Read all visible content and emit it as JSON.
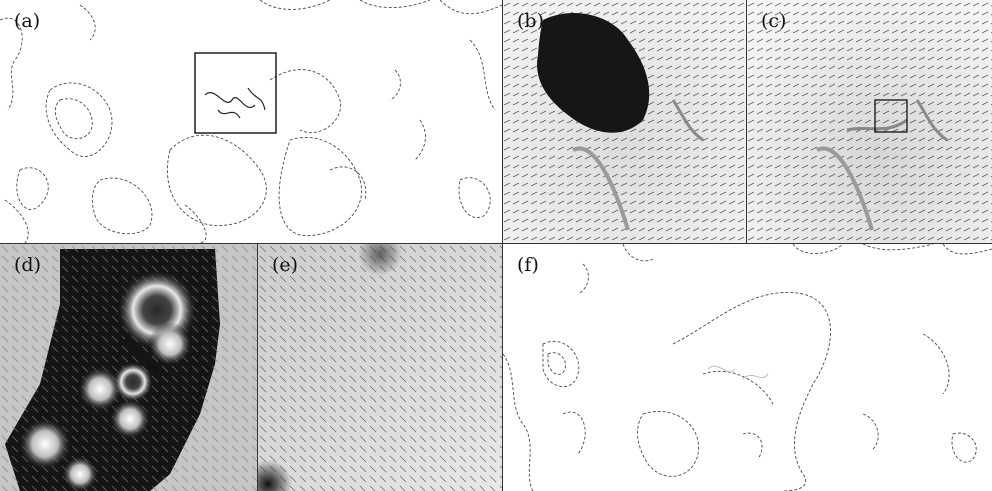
{
  "figure": {
    "panels": [
      {
        "id": "a",
        "label": "(a)"
      },
      {
        "id": "b",
        "label": "(b)"
      },
      {
        "id": "c",
        "label": "(c)"
      },
      {
        "id": "d",
        "label": "(d)"
      },
      {
        "id": "e",
        "label": "(e)"
      },
      {
        "id": "f",
        "label": "(f)"
      }
    ]
  },
  "colors": {
    "contour": "#4a4a4a",
    "frame": "#333333",
    "dark_blob": "#161616",
    "field_light": "#f1f1f1",
    "field_mid": "#c8c8c8",
    "vector": "#2b2b2b"
  },
  "icons": {
    "zoom_box": "rectangle-outline",
    "motion_arrow": "arrow"
  }
}
